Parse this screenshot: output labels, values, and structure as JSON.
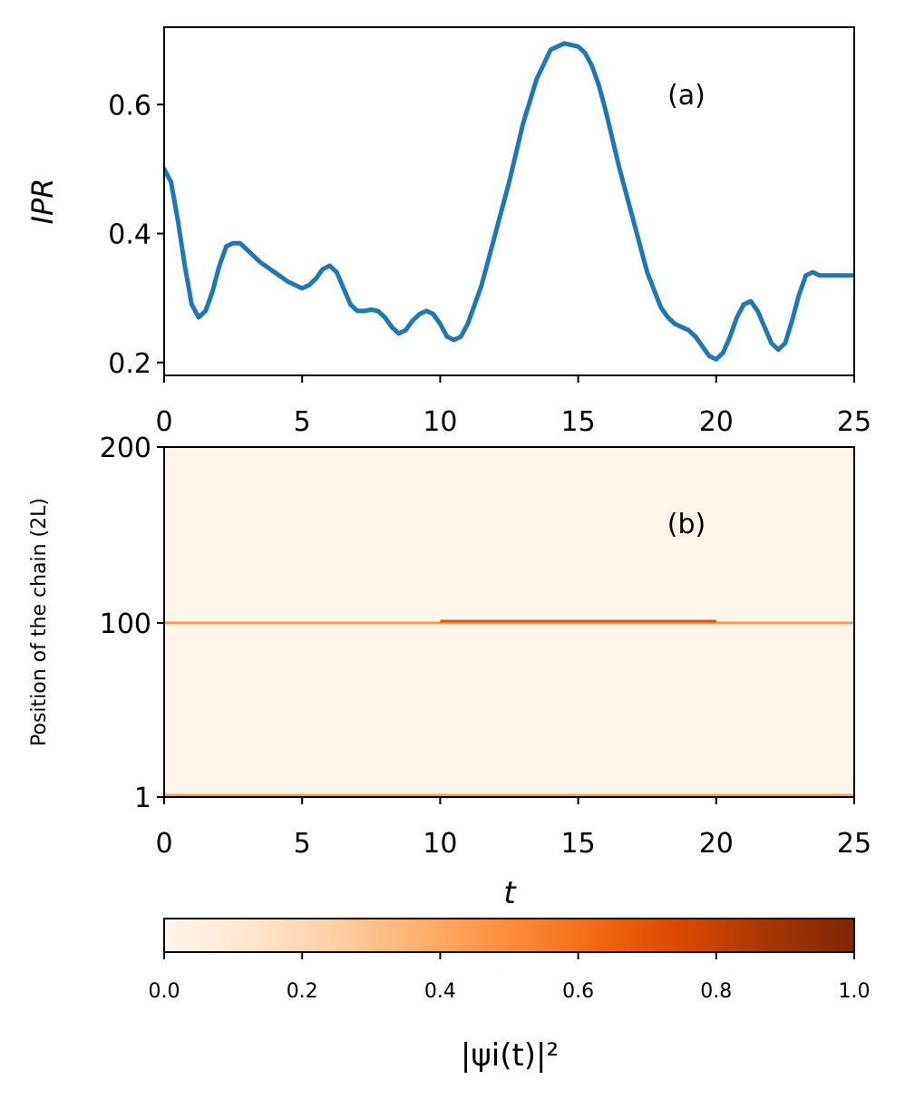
{
  "chart_data": [
    {
      "type": "line",
      "panel": "(a)",
      "ylabel": "IPR",
      "xlim": [
        0,
        25
      ],
      "ylim": [
        0.18,
        0.72
      ],
      "xticks": [
        "0",
        "5",
        "10",
        "15",
        "20",
        "25"
      ],
      "yticks": [
        "0.2",
        "0.4",
        "0.6"
      ],
      "line_color": "#1f77b4",
      "series": [
        {
          "x": [
            0,
            0.25,
            0.5,
            0.75,
            1.0,
            1.25,
            1.5,
            1.75,
            2.0,
            2.25,
            2.5,
            2.75,
            3.0,
            3.5,
            4.0,
            4.5,
            5.0,
            5.25,
            5.5,
            5.75,
            6.0,
            6.25,
            6.5,
            6.75,
            7.0,
            7.25,
            7.5,
            7.75,
            8.0,
            8.25,
            8.5,
            8.75,
            9.0,
            9.25,
            9.5,
            9.75,
            10.0,
            10.25,
            10.5,
            10.75,
            11.0,
            11.25,
            11.5,
            11.75,
            12.0,
            12.5,
            13.0,
            13.5,
            14.0,
            14.5,
            15.0,
            15.25,
            15.5,
            15.75,
            16.0,
            16.5,
            17.0,
            17.5,
            18.0,
            18.25,
            18.5,
            18.75,
            19.0,
            19.25,
            19.5,
            19.75,
            20.0,
            20.25,
            20.5,
            20.75,
            21.0,
            21.25,
            21.5,
            21.75,
            22.0,
            22.25,
            22.5,
            22.75,
            23.0,
            23.25,
            23.5,
            23.75,
            24.0,
            24.25,
            24.5,
            24.75,
            25.0
          ],
          "y": [
            0.5,
            0.48,
            0.42,
            0.35,
            0.29,
            0.27,
            0.28,
            0.31,
            0.35,
            0.38,
            0.385,
            0.385,
            0.375,
            0.355,
            0.34,
            0.325,
            0.315,
            0.32,
            0.33,
            0.345,
            0.35,
            0.34,
            0.315,
            0.29,
            0.28,
            0.28,
            0.282,
            0.28,
            0.27,
            0.255,
            0.245,
            0.25,
            0.265,
            0.275,
            0.28,
            0.275,
            0.26,
            0.24,
            0.235,
            0.24,
            0.26,
            0.29,
            0.32,
            0.36,
            0.4,
            0.48,
            0.57,
            0.64,
            0.685,
            0.695,
            0.69,
            0.68,
            0.66,
            0.63,
            0.59,
            0.5,
            0.42,
            0.34,
            0.285,
            0.27,
            0.26,
            0.255,
            0.25,
            0.24,
            0.225,
            0.21,
            0.205,
            0.215,
            0.24,
            0.27,
            0.29,
            0.295,
            0.28,
            0.255,
            0.23,
            0.22,
            0.23,
            0.265,
            0.305,
            0.335,
            0.34,
            0.335,
            0.335,
            0.335,
            0.335,
            0.335,
            0.335
          ]
        }
      ]
    },
    {
      "type": "heatmap",
      "panel": "(b)",
      "xlabel": "t",
      "ylabel": "Position of the chain (2L)",
      "xlim": [
        0,
        25
      ],
      "ylim": [
        1,
        200
      ],
      "xticks": [
        "0",
        "5",
        "10",
        "15",
        "20",
        "25"
      ],
      "yticks": [
        "1",
        "100",
        "200"
      ],
      "colormap": "Oranges",
      "background_color": "#fff5eb",
      "bright_rows": [
        {
          "position": 100,
          "t_from": 0,
          "t_to": 25,
          "intensity": 0.45
        },
        {
          "position": 101,
          "t_from": 10,
          "t_to": 20,
          "intensity": 0.7
        },
        {
          "position": 2,
          "t_from": 0,
          "t_to": 25,
          "intensity": 0.45
        }
      ],
      "colorbar": {
        "label": "|ψi(t)|²",
        "range": [
          0,
          1
        ],
        "ticks": [
          "0.0",
          "0.2",
          "0.4",
          "0.6",
          "0.8",
          "1.0"
        ],
        "colors": [
          "#fff5eb",
          "#fee6ce",
          "#fdd0a2",
          "#fdae6b",
          "#fd8d3c",
          "#f16913",
          "#d94801",
          "#a63603",
          "#7f2704"
        ]
      }
    }
  ]
}
